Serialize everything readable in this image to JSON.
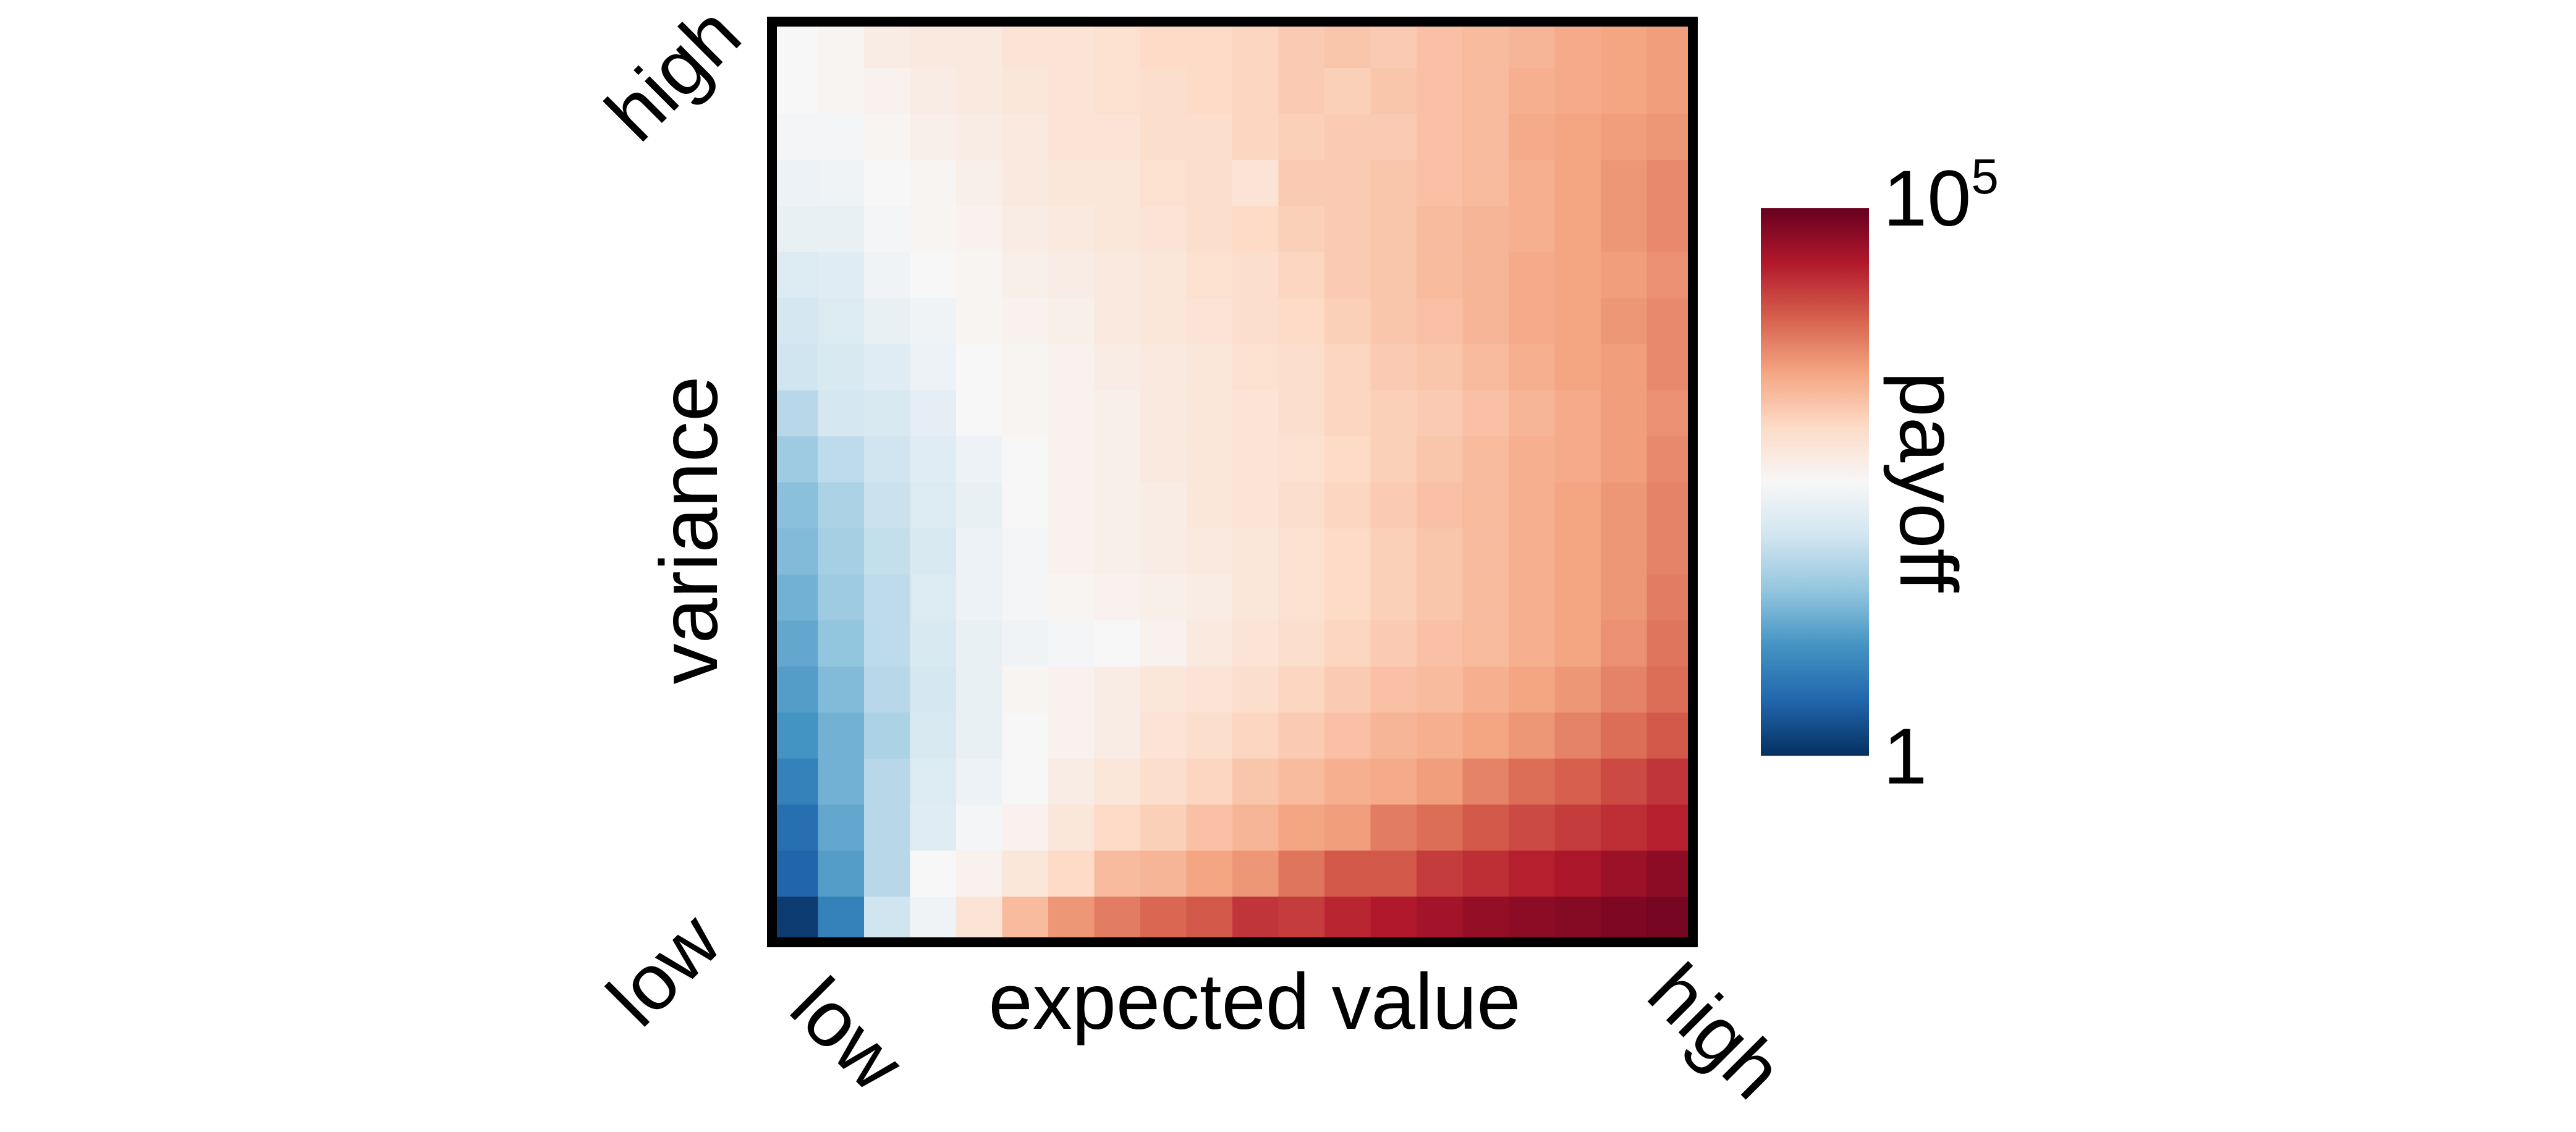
{
  "chart_data": {
    "type": "heatmap",
    "title": "",
    "xlabel": "expected value",
    "ylabel": "variance",
    "x_tick_labels": {
      "start": "low",
      "end": "high"
    },
    "y_tick_labels": {
      "start": "low",
      "end": "high"
    },
    "colorbar": {
      "label": "payoff",
      "scale": "log",
      "min_label": "1",
      "max_label_base": "10",
      "max_label_exponent": "5",
      "range": [
        1,
        100000
      ],
      "colormap": "RdBu_r",
      "stops": [
        "#053061",
        "#2166ac",
        "#4393c3",
        "#92c5de",
        "#d1e5f0",
        "#f7f7f7",
        "#fddbc7",
        "#f4a582",
        "#d6604d",
        "#b2182b",
        "#67001f"
      ]
    },
    "grid_size": [
      20,
      20
    ],
    "rows_from": "low variance (bottom) to high variance (top)",
    "columns_from": "low expected value (left) to high expected value (right)",
    "value_units": "log10(payoff), 0 to 5",
    "values": [
      [
        0.1,
        0.8,
        2.0,
        2.4,
        2.85,
        3.3,
        3.6,
        3.8,
        3.95,
        4.05,
        4.3,
        4.25,
        4.4,
        4.5,
        4.6,
        4.7,
        4.75,
        4.8,
        4.85,
        4.9
      ],
      [
        0.5,
        1.1,
        1.8,
        2.5,
        2.6,
        2.8,
        3.0,
        3.3,
        3.35,
        3.5,
        3.6,
        3.85,
        4.05,
        4.05,
        4.25,
        4.35,
        4.45,
        4.55,
        4.65,
        4.75
      ],
      [
        0.6,
        1.2,
        1.8,
        2.2,
        2.45,
        2.6,
        2.8,
        3.0,
        3.1,
        3.25,
        3.35,
        3.5,
        3.55,
        3.8,
        3.9,
        4.05,
        4.15,
        4.25,
        4.35,
        4.45
      ],
      [
        0.8,
        1.3,
        1.8,
        2.15,
        2.35,
        2.5,
        2.7,
        2.8,
        2.95,
        3.05,
        3.2,
        3.3,
        3.4,
        3.45,
        3.55,
        3.75,
        3.9,
        4.0,
        4.15,
        4.3
      ],
      [
        1.0,
        1.3,
        1.7,
        2.1,
        2.3,
        2.5,
        2.6,
        2.7,
        2.85,
        2.95,
        3.05,
        3.15,
        3.25,
        3.35,
        3.4,
        3.5,
        3.6,
        3.75,
        3.9,
        4.05
      ],
      [
        1.1,
        1.4,
        1.8,
        2.05,
        2.3,
        2.55,
        2.6,
        2.7,
        2.8,
        2.85,
        2.95,
        3.05,
        3.15,
        3.25,
        3.3,
        3.4,
        3.5,
        3.6,
        3.75,
        3.9
      ],
      [
        1.2,
        1.5,
        1.85,
        2.1,
        2.3,
        2.4,
        2.45,
        2.5,
        2.6,
        2.75,
        2.85,
        2.95,
        3.05,
        3.15,
        3.25,
        3.3,
        3.4,
        3.5,
        3.65,
        3.85
      ],
      [
        1.3,
        1.6,
        1.85,
        2.15,
        2.35,
        2.45,
        2.55,
        2.6,
        2.65,
        2.7,
        2.8,
        2.9,
        3.0,
        3.1,
        3.2,
        3.3,
        3.4,
        3.5,
        3.6,
        3.8
      ],
      [
        1.4,
        1.65,
        1.9,
        2.1,
        2.35,
        2.45,
        2.6,
        2.65,
        2.7,
        2.75,
        2.8,
        2.9,
        3.0,
        3.1,
        3.2,
        3.3,
        3.4,
        3.5,
        3.6,
        3.75
      ],
      [
        1.45,
        1.7,
        1.95,
        2.15,
        2.3,
        2.5,
        2.6,
        2.65,
        2.7,
        2.8,
        2.85,
        2.95,
        3.05,
        3.15,
        3.25,
        3.3,
        3.4,
        3.5,
        3.6,
        3.75
      ],
      [
        1.6,
        1.85,
        2.0,
        2.2,
        2.35,
        2.5,
        2.6,
        2.65,
        2.75,
        2.8,
        2.85,
        2.9,
        3.0,
        3.1,
        3.2,
        3.3,
        3.4,
        3.45,
        3.55,
        3.7
      ],
      [
        1.8,
        2.05,
        2.1,
        2.25,
        2.5,
        2.55,
        2.6,
        2.65,
        2.75,
        2.8,
        2.85,
        2.95,
        3.05,
        3.1,
        3.15,
        3.25,
        3.35,
        3.45,
        3.55,
        3.65
      ],
      [
        2.0,
        2.1,
        2.2,
        2.35,
        2.5,
        2.55,
        2.6,
        2.7,
        2.75,
        2.8,
        2.9,
        2.95,
        3.05,
        3.15,
        3.2,
        3.3,
        3.4,
        3.5,
        3.55,
        3.7
      ],
      [
        2.05,
        2.15,
        2.3,
        2.4,
        2.55,
        2.6,
        2.65,
        2.75,
        2.8,
        2.85,
        2.95,
        3.0,
        3.1,
        3.2,
        3.25,
        3.35,
        3.45,
        3.5,
        3.6,
        3.7
      ],
      [
        2.15,
        2.2,
        2.4,
        2.5,
        2.55,
        2.65,
        2.7,
        2.75,
        2.8,
        2.9,
        2.95,
        3.05,
        3.15,
        3.2,
        3.3,
        3.35,
        3.45,
        3.5,
        3.55,
        3.65
      ],
      [
        2.3,
        2.3,
        2.45,
        2.55,
        2.6,
        2.7,
        2.75,
        2.8,
        2.85,
        2.95,
        3.0,
        3.1,
        3.15,
        3.2,
        3.3,
        3.35,
        3.4,
        3.5,
        3.6,
        3.7
      ],
      [
        2.35,
        2.4,
        2.5,
        2.55,
        2.65,
        2.75,
        2.8,
        2.8,
        2.9,
        2.95,
        2.85,
        3.15,
        3.15,
        3.2,
        3.25,
        3.3,
        3.4,
        3.5,
        3.6,
        3.7
      ],
      [
        2.45,
        2.45,
        2.55,
        2.65,
        2.7,
        2.75,
        2.85,
        2.85,
        2.95,
        2.95,
        3.05,
        3.1,
        3.15,
        3.15,
        3.25,
        3.3,
        3.45,
        3.5,
        3.55,
        3.6
      ],
      [
        2.5,
        2.55,
        2.6,
        2.7,
        2.75,
        2.8,
        2.85,
        2.9,
        2.95,
        3.0,
        3.05,
        3.15,
        3.1,
        3.2,
        3.25,
        3.3,
        3.4,
        3.45,
        3.5,
        3.55
      ],
      [
        2.5,
        2.55,
        2.7,
        2.75,
        2.75,
        2.85,
        2.85,
        2.9,
        3.0,
        3.0,
        3.05,
        3.15,
        3.2,
        3.15,
        3.25,
        3.3,
        3.35,
        3.45,
        3.5,
        3.55
      ]
    ]
  }
}
